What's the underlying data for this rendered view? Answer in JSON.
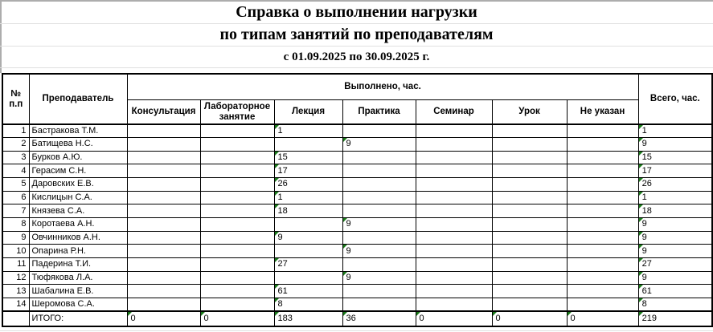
{
  "title": {
    "line1": "Справка о выполнении нагрузки",
    "line2": "по типам занятий по преподавателям",
    "line3": "с 01.09.2025 по 30.09.2025 г."
  },
  "table": {
    "header": {
      "num_top": "№",
      "num_bottom": "п.п",
      "teacher": "Преподаватель",
      "group": "Выполнено, час.",
      "subcolumns": [
        "Консультация",
        "Лабораторное занятие",
        "Лекция",
        "Практика",
        "Семинар",
        "Урок",
        "Не указан"
      ],
      "total": "Всего, час."
    },
    "rows": [
      {
        "num": "1",
        "teacher": "Бастракова Т.М.",
        "values": [
          "",
          "",
          "1",
          "",
          "",
          "",
          ""
        ],
        "total": "1"
      },
      {
        "num": "2",
        "teacher": "Батищева Н.С.",
        "values": [
          "",
          "",
          "",
          "9",
          "",
          "",
          ""
        ],
        "total": "9"
      },
      {
        "num": "3",
        "teacher": "Бурков А.Ю.",
        "values": [
          "",
          "",
          "15",
          "",
          "",
          "",
          ""
        ],
        "total": "15"
      },
      {
        "num": "4",
        "teacher": "Герасим С.Н.",
        "values": [
          "",
          "",
          "17",
          "",
          "",
          "",
          ""
        ],
        "total": "17"
      },
      {
        "num": "5",
        "teacher": "Даровских Е.В.",
        "values": [
          "",
          "",
          "26",
          "",
          "",
          "",
          ""
        ],
        "total": "26"
      },
      {
        "num": "6",
        "teacher": "Кислицын С.А.",
        "values": [
          "",
          "",
          "1",
          "",
          "",
          "",
          ""
        ],
        "total": "1"
      },
      {
        "num": "7",
        "teacher": "Князева С.А.",
        "values": [
          "",
          "",
          "18",
          "",
          "",
          "",
          ""
        ],
        "total": "18"
      },
      {
        "num": "8",
        "teacher": "Коротаева А.Н.",
        "values": [
          "",
          "",
          "",
          "9",
          "",
          "",
          ""
        ],
        "total": "9"
      },
      {
        "num": "9",
        "teacher": "Овчинников А.Н.",
        "values": [
          "",
          "",
          "9",
          "",
          "",
          "",
          ""
        ],
        "total": "9"
      },
      {
        "num": "10",
        "teacher": "Опарина Р.Н.",
        "values": [
          "",
          "",
          "",
          "9",
          "",
          "",
          ""
        ],
        "total": "9"
      },
      {
        "num": "11",
        "teacher": "Падерина Т.И.",
        "values": [
          "",
          "",
          "27",
          "",
          "",
          "",
          ""
        ],
        "total": "27"
      },
      {
        "num": "12",
        "teacher": "Тюфякова Л.А.",
        "values": [
          "",
          "",
          "",
          "9",
          "",
          "",
          ""
        ],
        "total": "9"
      },
      {
        "num": "13",
        "teacher": "Шабалина Е.В.",
        "values": [
          "",
          "",
          "61",
          "",
          "",
          "",
          ""
        ],
        "total": "61"
      },
      {
        "num": "14",
        "teacher": "Шеромова С.А.",
        "values": [
          "",
          "",
          "8",
          "",
          "",
          "",
          ""
        ],
        "total": "8"
      }
    ],
    "totals": {
      "label": "ИТОГО:",
      "values": [
        "0",
        "0",
        "183",
        "36",
        "0",
        "0",
        "0"
      ],
      "total": "219"
    }
  },
  "colors": {
    "indicator_green": "#1a7a1a",
    "table_border": "#000000"
  }
}
